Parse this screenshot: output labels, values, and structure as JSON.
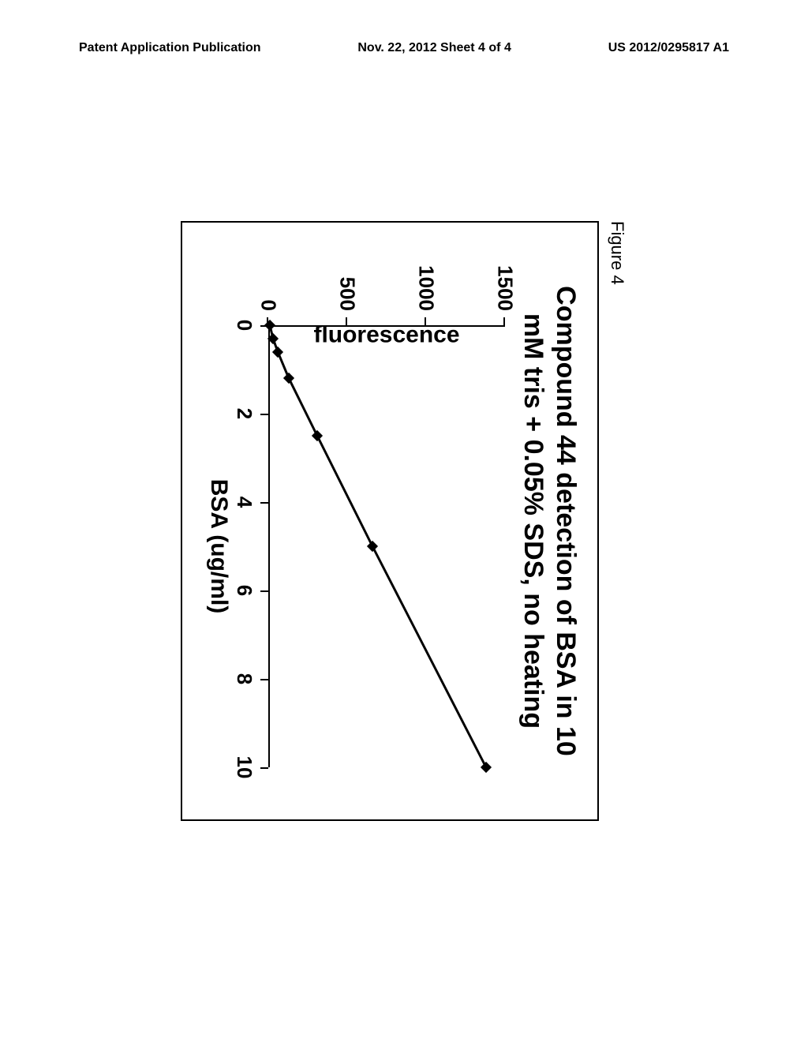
{
  "header": {
    "left": "Patent Application Publication",
    "center": "Nov. 22, 2012  Sheet 4 of 4",
    "right": "US 2012/0295817 A1"
  },
  "figure": {
    "label": "Figure 4",
    "chart": {
      "type": "line",
      "title_line1": "Compound 44 detection of BSA in 10",
      "title_line2": "mM tris + 0.05% SDS, no heating",
      "xlabel": "BSA (ug/ml)",
      "ylabel": "fluorescence",
      "xlim": [
        0,
        10
      ],
      "ylim": [
        0,
        1500
      ],
      "xtick_step": 2,
      "ytick_step": 500,
      "xticks": [
        0,
        2,
        4,
        6,
        8,
        10
      ],
      "yticks": [
        0,
        500,
        1000,
        1500
      ],
      "data_x": [
        0,
        0.3,
        0.6,
        1.2,
        2.5,
        5,
        10
      ],
      "data_y": [
        10,
        30,
        60,
        130,
        310,
        660,
        1380
      ],
      "line_color": "#000000",
      "marker_style": "diamond",
      "marker_color": "#000000",
      "marker_size": 10,
      "line_width": 3,
      "background_color": "#ffffff",
      "axis_color": "#000000",
      "title_fontsize": 34,
      "label_fontsize": 30,
      "tick_fontsize": 26
    }
  }
}
